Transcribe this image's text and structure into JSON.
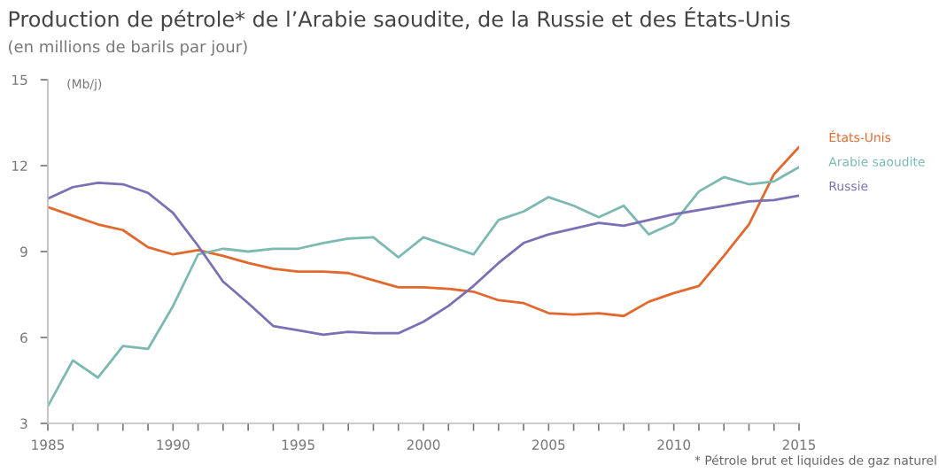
{
  "chart_data": {
    "type": "line",
    "title": "Production de pétrole* de l’Arabie saoudite, de la Russie et des États-Unis",
    "subtitle": "(en millions de barils par jour)",
    "annotations": [
      "(Mb/j)",
      "* Pétrole brut et liquides de gaz naturel"
    ],
    "x": [
      1985,
      1986,
      1987,
      1988,
      1989,
      1990,
      1991,
      1992,
      1993,
      1994,
      1995,
      1996,
      1997,
      1998,
      1999,
      2000,
      2001,
      2002,
      2003,
      2004,
      2005,
      2006,
      2007,
      2008,
      2009,
      2010,
      2011,
      2012,
      2013,
      2014,
      2015
    ],
    "series": [
      {
        "name": "États-Unis",
        "color": "#e2692d",
        "values": [
          10.55,
          10.25,
          9.95,
          9.75,
          9.15,
          8.9,
          9.05,
          8.85,
          8.6,
          8.4,
          8.3,
          8.3,
          8.25,
          8.0,
          7.75,
          7.75,
          7.7,
          7.6,
          7.3,
          7.2,
          6.85,
          6.8,
          6.85,
          6.75,
          7.25,
          7.55,
          7.8,
          8.85,
          9.95,
          11.7,
          12.65
        ]
      },
      {
        "name": "Arabie saoudite",
        "color": "#7cb9b1",
        "values": [
          3.6,
          5.2,
          4.6,
          5.7,
          5.6,
          7.1,
          8.9,
          9.1,
          9.0,
          9.1,
          9.1,
          9.3,
          9.45,
          9.5,
          8.8,
          9.5,
          9.2,
          8.9,
          10.1,
          10.4,
          10.9,
          10.6,
          10.2,
          10.6,
          9.6,
          10.0,
          11.1,
          11.6,
          11.35,
          11.45,
          11.95
        ]
      },
      {
        "name": "Russie",
        "color": "#7b70b6",
        "values": [
          10.85,
          11.25,
          11.4,
          11.35,
          11.05,
          10.35,
          9.2,
          7.95,
          7.2,
          6.4,
          6.25,
          6.1,
          6.2,
          6.15,
          6.15,
          6.55,
          7.1,
          7.8,
          8.6,
          9.3,
          9.6,
          9.8,
          10.0,
          9.9,
          10.1,
          10.3,
          10.45,
          10.6,
          10.75,
          10.8,
          10.95
        ]
      }
    ],
    "xlim": [
      1985,
      2015
    ],
    "ylim": [
      3,
      15
    ],
    "xticks": [
      1985,
      {
        "value": 1986,
        "label": null
      },
      {
        "value": 1987,
        "label": null
      },
      {
        "value": 1988,
        "label": null
      },
      {
        "value": 1989,
        "label": null
      },
      1990,
      {
        "value": 1991,
        "label": null
      },
      {
        "value": 1992,
        "label": null
      },
      {
        "value": 1993,
        "label": null
      },
      {
        "value": 1994,
        "label": null
      },
      1995,
      {
        "value": 1996,
        "label": null
      },
      {
        "value": 1997,
        "label": null
      },
      {
        "value": 1998,
        "label": null
      },
      {
        "value": 1999,
        "label": null
      },
      2000,
      {
        "value": 2001,
        "label": null
      },
      {
        "value": 2002,
        "label": null
      },
      {
        "value": 2003,
        "label": null
      },
      {
        "value": 2004,
        "label": null
      },
      2005,
      {
        "value": 2006,
        "label": null
      },
      {
        "value": 2007,
        "label": null
      },
      {
        "value": 2008,
        "label": null
      },
      {
        "value": 2009,
        "label": null
      },
      2010,
      {
        "value": 2011,
        "label": null
      },
      {
        "value": 2012,
        "label": null
      },
      {
        "value": 2013,
        "label": null
      },
      {
        "value": 2014,
        "label": null
      },
      2015
    ],
    "yticks": [
      3,
      6,
      9,
      12,
      15
    ],
    "grid": false,
    "legend": false,
    "marker": "none",
    "line_style": "solid"
  }
}
